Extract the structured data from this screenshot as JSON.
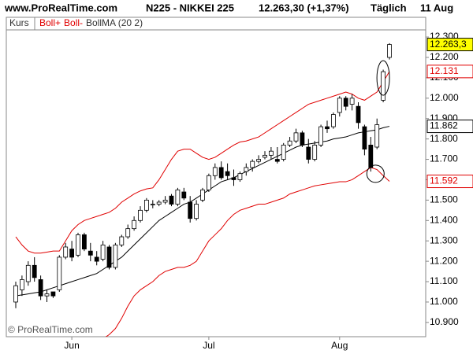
{
  "chart_data": {
    "type": "candlestick",
    "source": "www.ProRealTime.com",
    "title": "N225 - NIKKEI 225",
    "price": "12.263,30 (+1,37%)",
    "period": "Täglich",
    "date": "11 Aug",
    "price_name": "Kurs",
    "watermark": "© ProRealTime.com",
    "categories": [
      null,
      null,
      null,
      null,
      null,
      null,
      null,
      null,
      null,
      "Jun",
      null,
      null,
      null,
      null,
      null,
      null,
      null,
      null,
      null,
      null,
      null,
      null,
      null,
      null,
      null,
      null,
      null,
      null,
      null,
      null,
      null,
      "Jul",
      null,
      null,
      null,
      null,
      null,
      null,
      null,
      null,
      null,
      null,
      null,
      null,
      null,
      null,
      null,
      null,
      null,
      null,
      null,
      null,
      "Aug",
      null,
      null,
      null,
      null,
      null,
      null,
      null,
      null
    ],
    "open": [
      11000,
      11060,
      11100,
      11180,
      11110,
      11030,
      11050,
      11060,
      11220,
      11260,
      11230,
      11330,
      11250,
      11220,
      11210,
      11270,
      11170,
      11280,
      11320,
      11360,
      11400,
      11450,
      11480,
      11480,
      11490,
      11520,
      11480,
      11540,
      11490,
      11410,
      11500,
      11550,
      11620,
      11660,
      11640,
      11610,
      11600,
      11640,
      11660,
      11690,
      11710,
      11720,
      11700,
      11700,
      11770,
      11790,
      11830,
      11760,
      11700,
      11770,
      11860,
      11860,
      11930,
      12000,
      11970,
      11960,
      11860,
      11770,
      11760,
      11990,
      12200
    ],
    "high": [
      11100,
      11130,
      11200,
      11220,
      11130,
      11060,
      11050,
      11230,
      11290,
      11300,
      11340,
      11340,
      11290,
      11250,
      11300,
      11280,
      11290,
      11330,
      11380,
      11420,
      11470,
      11510,
      11500,
      11500,
      11520,
      11530,
      11560,
      11560,
      11520,
      11500,
      11560,
      11630,
      11680,
      11690,
      11680,
      11650,
      11640,
      11680,
      11700,
      11720,
      11740,
      11760,
      11760,
      11780,
      11810,
      11850,
      11840,
      11800,
      11790,
      11870,
      11890,
      11930,
      12010,
      12010,
      12020,
      11980,
      11870,
      11810,
      11900,
      12140,
      12270
    ],
    "low": [
      10970,
      11030,
      11080,
      11100,
      11010,
      11000,
      11020,
      11050,
      11210,
      11200,
      11220,
      11250,
      11200,
      11180,
      11200,
      11160,
      11160,
      11270,
      11310,
      11350,
      11390,
      11440,
      11460,
      11470,
      11480,
      11470,
      11470,
      11500,
      11390,
      11400,
      11490,
      11540,
      11600,
      11600,
      11600,
      11570,
      11590,
      11620,
      11640,
      11680,
      11700,
      11700,
      11680,
      11690,
      11760,
      11780,
      11760,
      11680,
      11690,
      11760,
      11830,
      11850,
      11910,
      11940,
      11940,
      11850,
      11720,
      11640,
      11750,
      11980,
      12190
    ],
    "close": [
      11080,
      11110,
      11180,
      11120,
      11030,
      11040,
      11030,
      11220,
      11270,
      11220,
      11330,
      11260,
      11230,
      11200,
      11280,
      11170,
      11280,
      11320,
      11360,
      11400,
      11450,
      11500,
      11480,
      11490,
      11500,
      11480,
      11550,
      11510,
      11410,
      11480,
      11550,
      11620,
      11660,
      11610,
      11620,
      11600,
      11630,
      11660,
      11690,
      11700,
      11720,
      11740,
      11690,
      11770,
      11790,
      11830,
      11770,
      11700,
      11770,
      11860,
      11850,
      11920,
      12000,
      11960,
      12000,
      11880,
      11750,
      11660,
      11870,
      12130,
      12263.3
    ],
    "last_label": "12.263,3",
    "up_color": "#ffffff",
    "down_color": "#000000",
    "series": [
      {
        "name": "Boll+",
        "color": "#e00000",
        "last_label": "12.131",
        "values": [
          11320,
          11280,
          11250,
          11240,
          11240,
          11245,
          11250,
          11250,
          11300,
          11350,
          11380,
          11400,
          11410,
          11420,
          11430,
          11440,
          11460,
          11490,
          11510,
          11530,
          11545,
          11555,
          11560,
          11600,
          11650,
          11700,
          11740,
          11750,
          11750,
          11730,
          11710,
          11700,
          11710,
          11730,
          11750,
          11770,
          11785,
          11790,
          11800,
          11810,
          11830,
          11850,
          11870,
          11890,
          11910,
          11930,
          11950,
          11970,
          11980,
          11990,
          12000,
          12010,
          12020,
          12030,
          12020,
          12000,
          11990,
          12010,
          12030,
          12080,
          12131
        ]
      },
      {
        "name": "Boll-",
        "color": "#e00000",
        "last_label": "11.592",
        "values": [
          10780,
          10790,
          10790,
          10800,
          10790,
          10780,
          10790,
          10800,
          10780,
          10770,
          10760,
          10770,
          10780,
          10800,
          10820,
          10840,
          10870,
          10920,
          10980,
          11030,
          11060,
          11080,
          11100,
          11130,
          11150,
          11160,
          11170,
          11170,
          11180,
          11200,
          11250,
          11300,
          11330,
          11360,
          11400,
          11430,
          11450,
          11460,
          11470,
          11480,
          11480,
          11490,
          11500,
          11510,
          11530,
          11540,
          11550,
          11560,
          11570,
          11575,
          11580,
          11585,
          11590,
          11590,
          11600,
          11620,
          11640,
          11660,
          11650,
          11620,
          11592
        ]
      },
      {
        "name": "BollMA (20 2)",
        "color": "#000000",
        "last_label": "11.862",
        "values": [
          11030,
          11035,
          11040,
          11045,
          11050,
          11060,
          11070,
          11080,
          11090,
          11100,
          11110,
          11120,
          11130,
          11140,
          11160,
          11180,
          11200,
          11220,
          11250,
          11280,
          11310,
          11340,
          11370,
          11400,
          11420,
          11440,
          11460,
          11480,
          11490,
          11510,
          11530,
          11550,
          11570,
          11590,
          11600,
          11610,
          11625,
          11640,
          11655,
          11670,
          11685,
          11700,
          11715,
          11730,
          11745,
          11760,
          11770,
          11775,
          11780,
          11785,
          11790,
          11800,
          11805,
          11810,
          11820,
          11830,
          11835,
          11840,
          11845,
          11855,
          11862
        ]
      }
    ],
    "ylim": [
      10830,
      12335
    ],
    "yticks": [
      {
        "value": 10900,
        "label": "10.900"
      },
      {
        "value": 11000,
        "label": "11.000"
      },
      {
        "value": 11100,
        "label": "11.100"
      },
      {
        "value": 11200,
        "label": "11.200"
      },
      {
        "value": 11300,
        "label": "11.300"
      },
      {
        "value": 11400,
        "label": "11.400"
      },
      {
        "value": 11500,
        "label": "11.500"
      },
      {
        "value": 11600,
        "label": "11.600"
      },
      {
        "value": 11700,
        "label": "11.700"
      },
      {
        "value": 11800,
        "label": "11.800"
      },
      {
        "value": 11900,
        "label": "11.900"
      },
      {
        "value": 12000,
        "label": "12.000"
      },
      {
        "value": 12100,
        "label": "12.100"
      },
      {
        "value": 12200,
        "label": "12.200"
      },
      {
        "value": 12300,
        "label": "12.300"
      }
    ]
  }
}
